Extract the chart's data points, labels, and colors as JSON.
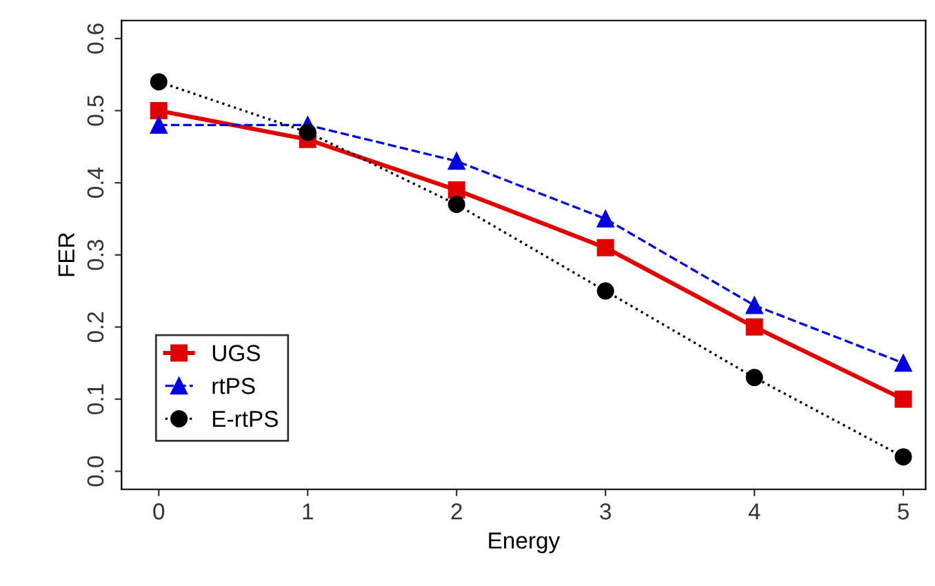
{
  "chart_data": {
    "type": "line",
    "xlabel": "Energy",
    "ylabel": "FER",
    "x": [
      0,
      1,
      2,
      3,
      4,
      5
    ],
    "series": [
      {
        "name": "UGS",
        "color": "#e00000",
        "values": [
          0.5,
          0.46,
          0.39,
          0.31,
          0.2,
          0.1
        ],
        "marker": "square",
        "line_style": "solid"
      },
      {
        "name": "rtPS",
        "color": "#0000e0",
        "values": [
          0.48,
          0.48,
          0.43,
          0.35,
          0.23,
          0.15
        ],
        "marker": "triangle",
        "line_style": "dashed"
      },
      {
        "name": "E-rtPS",
        "color": "#000000",
        "values": [
          0.54,
          0.47,
          0.37,
          0.25,
          0.13,
          0.02
        ],
        "marker": "circle",
        "line_style": "dotted"
      }
    ],
    "xlim": [
      -0.25,
      5.15
    ],
    "ylim": [
      -0.025,
      0.625
    ],
    "xticks": [
      0,
      1,
      2,
      3,
      4,
      5
    ],
    "yticks": [
      {
        "value": 0,
        "label": "0.0"
      },
      0.1,
      0.2,
      0.3,
      0.4,
      0.5,
      0.6
    ],
    "grid": false,
    "legend": "bottom left"
  }
}
